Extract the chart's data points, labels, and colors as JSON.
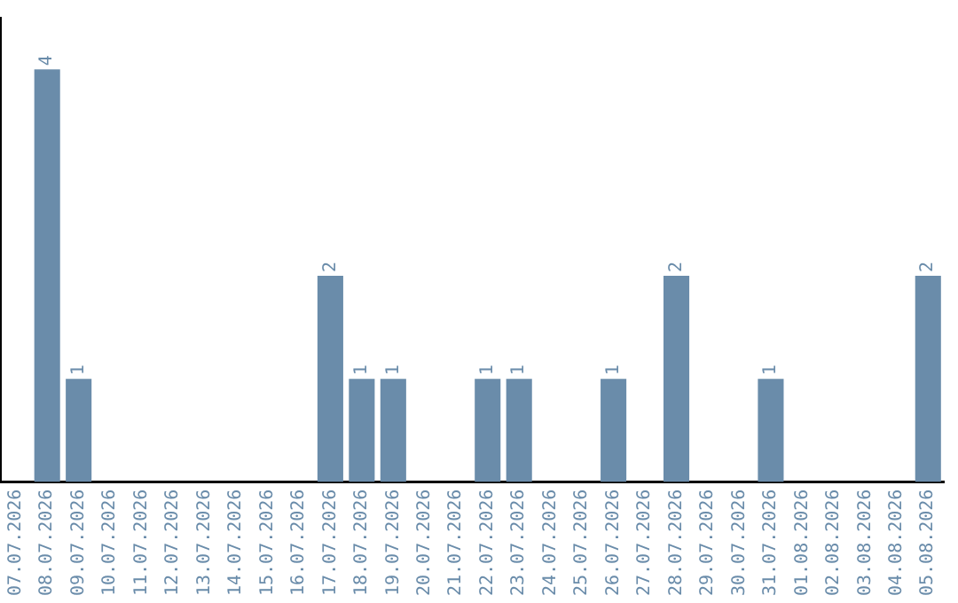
{
  "chart_data": {
    "type": "bar",
    "categories": [
      "07.07.2026",
      "08.07.2026",
      "09.07.2026",
      "10.07.2026",
      "11.07.2026",
      "12.07.2026",
      "13.07.2026",
      "14.07.2026",
      "15.07.2026",
      "16.07.2026",
      "17.07.2026",
      "18.07.2026",
      "19.07.2026",
      "20.07.2026",
      "21.07.2026",
      "22.07.2026",
      "23.07.2026",
      "24.07.2026",
      "25.07.2026",
      "26.07.2026",
      "27.07.2026",
      "28.07.2026",
      "29.07.2026",
      "30.07.2026",
      "31.07.2026",
      "01.08.2026",
      "02.08.2026",
      "03.08.2026",
      "04.08.2026",
      "05.08.2026"
    ],
    "values": [
      0,
      4,
      1,
      0,
      0,
      0,
      0,
      0,
      0,
      0,
      2,
      1,
      1,
      0,
      0,
      1,
      1,
      0,
      0,
      1,
      0,
      2,
      0,
      0,
      1,
      0,
      0,
      0,
      0,
      2
    ],
    "value_labels": [
      null,
      "4",
      "1",
      null,
      null,
      null,
      null,
      null,
      null,
      null,
      "2",
      "1",
      "1",
      null,
      null,
      "1",
      "1",
      null,
      null,
      "1",
      null,
      "2",
      null,
      null,
      "1",
      null,
      null,
      null,
      null,
      "2"
    ],
    "color": "#6a8caa",
    "grid": false,
    "legend": false,
    "tick_labels": "x"
  }
}
